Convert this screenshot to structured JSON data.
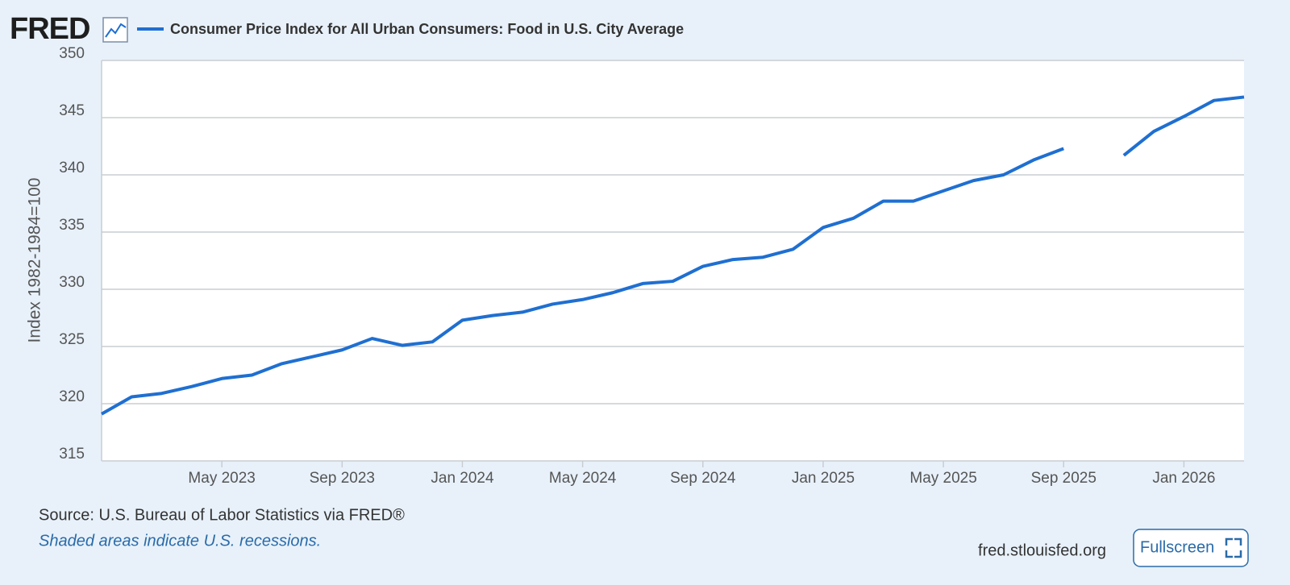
{
  "logo": "FRED",
  "source": "Source: U.S. Bureau of Labor Statistics via FRED®",
  "note": "Shaded areas indicate U.S. recessions.",
  "site": "fred.stlouisfed.org",
  "button": "Fullscreen",
  "chart_data": {
    "type": "line",
    "ylabel": "Index 1982-1984=100",
    "categories": [
      null,
      null,
      null,
      null,
      "May 2023",
      null,
      null,
      null,
      "Sep 2023",
      null,
      null,
      null,
      "Jan 2024",
      null,
      null,
      null,
      "May 2024",
      null,
      null,
      null,
      "Sep 2024",
      null,
      null,
      null,
      "Jan 2025",
      null,
      null,
      null,
      "May 2025",
      null,
      null,
      null,
      "Sep 2025",
      null,
      null,
      null,
      "Jan 2026",
      null,
      null
    ],
    "series": [
      {
        "name": "Consumer Price Index for All Urban Consumers: Food in U.S. City Average",
        "color": "#1f6fd1",
        "values": [
          319.1,
          320.6,
          320.9,
          321.5,
          322.2,
          322.5,
          323.5,
          324.1,
          324.7,
          325.7,
          325.1,
          325.4,
          327.3,
          327.7,
          328.0,
          328.7,
          329.1,
          329.7,
          330.5,
          330.7,
          332.0,
          332.6,
          332.8,
          333.5,
          335.4,
          336.2,
          337.7,
          337.7,
          338.6,
          339.5,
          340.0,
          341.3,
          342.3,
          null,
          341.7,
          343.8,
          345.1,
          346.5,
          346.8
        ]
      }
    ],
    "ylim": [
      315,
      350
    ],
    "yticks": [
      315,
      320,
      325,
      330,
      335,
      340,
      345,
      350
    ],
    "grid": true
  }
}
